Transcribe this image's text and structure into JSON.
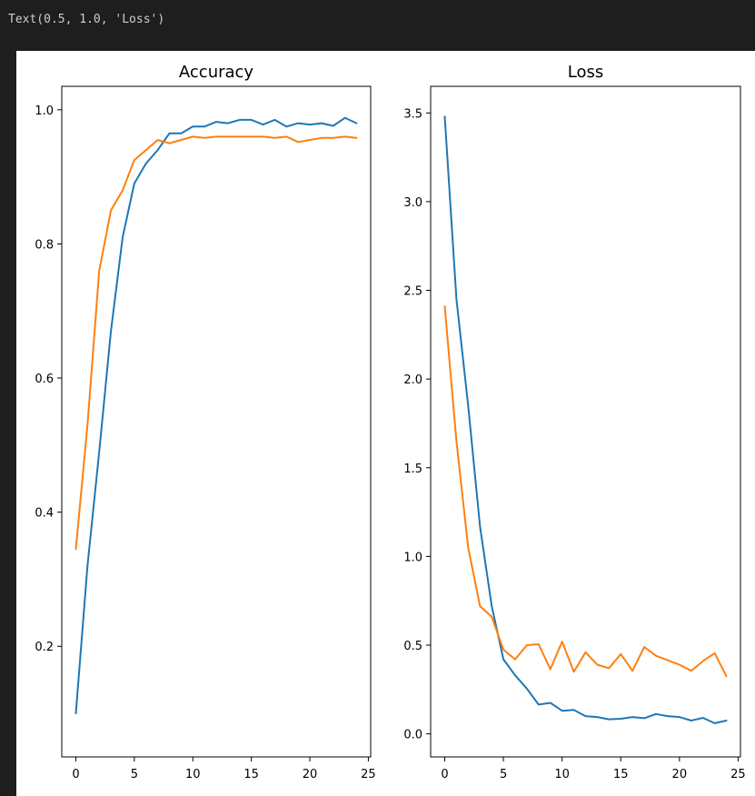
{
  "output": {
    "text": "Text(0.5, 1.0, 'Loss')"
  },
  "colors": {
    "series_blue": "#1f77b4",
    "series_orange": "#ff7f0e"
  },
  "chart_data": [
    {
      "type": "line",
      "title": "Accuracy",
      "xlabel": "",
      "ylabel": "",
      "xlim": [
        -1.2,
        25.2
      ],
      "ylim": [
        0.035,
        1.035
      ],
      "xticks": [
        0,
        5,
        10,
        15,
        20,
        25
      ],
      "xtick_labels": [
        "0",
        "5",
        "10",
        "15",
        "20",
        "25"
      ],
      "yticks": [
        0.2,
        0.4,
        0.6,
        0.8,
        1.0
      ],
      "ytick_labels": [
        "0.2",
        "0.4",
        "0.6",
        "0.8",
        "1.0"
      ],
      "grid": false,
      "x": [
        0,
        1,
        2,
        3,
        4,
        5,
        6,
        7,
        8,
        9,
        10,
        11,
        12,
        13,
        14,
        15,
        16,
        17,
        18,
        19,
        20,
        21,
        22,
        23,
        24
      ],
      "series": [
        {
          "color": "#1f77b4",
          "values": [
            0.1,
            0.32,
            0.49,
            0.67,
            0.81,
            0.89,
            0.92,
            0.94,
            0.965,
            0.965,
            0.975,
            0.975,
            0.982,
            0.98,
            0.985,
            0.985,
            0.978,
            0.985,
            0.975,
            0.98,
            0.978,
            0.98,
            0.976,
            0.988,
            0.98
          ]
        },
        {
          "color": "#ff7f0e",
          "values": [
            0.345,
            0.53,
            0.76,
            0.85,
            0.88,
            0.925,
            0.94,
            0.955,
            0.95,
            0.955,
            0.96,
            0.958,
            0.96,
            0.96,
            0.96,
            0.96,
            0.96,
            0.958,
            0.96,
            0.952,
            0.955,
            0.958,
            0.958,
            0.96,
            0.958
          ]
        }
      ]
    },
    {
      "type": "line",
      "title": "Loss",
      "xlabel": "",
      "ylabel": "",
      "xlim": [
        -1.2,
        25.2
      ],
      "ylim": [
        -0.13,
        3.65
      ],
      "xticks": [
        0,
        5,
        10,
        15,
        20,
        25
      ],
      "xtick_labels": [
        "0",
        "5",
        "10",
        "15",
        "20",
        "25"
      ],
      "yticks": [
        0.0,
        0.5,
        1.0,
        1.5,
        2.0,
        2.5,
        3.0,
        3.5
      ],
      "ytick_labels": [
        "0.0",
        "0.5",
        "1.0",
        "1.5",
        "2.0",
        "2.5",
        "3.0",
        "3.5"
      ],
      "grid": false,
      "x": [
        0,
        1,
        2,
        3,
        4,
        5,
        6,
        7,
        8,
        9,
        10,
        11,
        12,
        13,
        14,
        15,
        16,
        17,
        18,
        19,
        20,
        21,
        22,
        23,
        24
      ],
      "series": [
        {
          "color": "#1f77b4",
          "values": [
            3.48,
            2.45,
            1.85,
            1.17,
            0.72,
            0.42,
            0.33,
            0.255,
            0.165,
            0.175,
            0.13,
            0.135,
            0.1,
            0.095,
            0.082,
            0.085,
            0.095,
            0.088,
            0.112,
            0.1,
            0.095,
            0.075,
            0.09,
            0.06,
            0.075
          ]
        },
        {
          "color": "#ff7f0e",
          "values": [
            2.41,
            1.65,
            1.05,
            0.72,
            0.66,
            0.475,
            0.42,
            0.5,
            0.505,
            0.365,
            0.52,
            0.35,
            0.46,
            0.39,
            0.37,
            0.45,
            0.355,
            0.49,
            0.44,
            0.415,
            0.39,
            0.355,
            0.41,
            0.455,
            0.325
          ]
        }
      ]
    }
  ]
}
